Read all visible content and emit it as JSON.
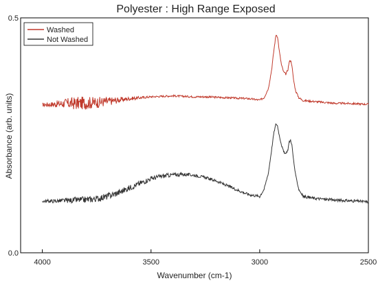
{
  "chart_data": {
    "type": "line",
    "title": "Polyester : High Range Exposed",
    "xlabel": "Wavenumber (cm-1)",
    "ylabel": "Absorbance (arb. units)",
    "xlim": [
      4100,
      2500
    ],
    "ylim": [
      0.0,
      0.5
    ],
    "x_reversed": true,
    "x_ticks": [
      4000,
      3500,
      3000,
      2500
    ],
    "x_tick_labels": [
      "4000",
      "3500",
      "3000",
      "2500"
    ],
    "y_ticks": [
      0.0,
      0.5
    ],
    "y_tick_labels": [
      "0.0",
      "0.5"
    ],
    "grid": false,
    "legend": {
      "position": "top-left",
      "boxed": true
    },
    "series": [
      {
        "name": "Washed",
        "color": "#c0392b",
        "x": [
          4000,
          3950,
          3900,
          3850,
          3800,
          3750,
          3700,
          3650,
          3600,
          3550,
          3500,
          3450,
          3400,
          3350,
          3300,
          3250,
          3200,
          3150,
          3100,
          3050,
          3000,
          2980,
          2960,
          2945,
          2935,
          2925,
          2918,
          2910,
          2900,
          2890,
          2880,
          2870,
          2865,
          2858,
          2852,
          2845,
          2835,
          2820,
          2800,
          2750,
          2700,
          2650,
          2600,
          2550,
          2500
        ],
        "y": [
          0.315,
          0.316,
          0.318,
          0.318,
          0.319,
          0.32,
          0.322,
          0.325,
          0.328,
          0.33,
          0.332,
          0.333,
          0.334,
          0.333,
          0.332,
          0.332,
          0.331,
          0.33,
          0.329,
          0.328,
          0.325,
          0.33,
          0.35,
          0.39,
          0.43,
          0.465,
          0.46,
          0.43,
          0.4,
          0.385,
          0.38,
          0.39,
          0.405,
          0.41,
          0.4,
          0.37,
          0.345,
          0.33,
          0.324,
          0.322,
          0.32,
          0.318,
          0.318,
          0.317,
          0.316
        ],
        "noise_amplitude": [
          0.004,
          0.006,
          0.01,
          0.014,
          0.014,
          0.012,
          0.01,
          0.006,
          0.004,
          0.003,
          0.002,
          0.002,
          0.002,
          0.002,
          0.002,
          0.002,
          0.002,
          0.002,
          0.002,
          0.002,
          0.002,
          0.002,
          0.002,
          0.002,
          0.002,
          0.002,
          0.002,
          0.002,
          0.002,
          0.002,
          0.002,
          0.002,
          0.002,
          0.002,
          0.002,
          0.002,
          0.002,
          0.002,
          0.002,
          0.002,
          0.002,
          0.002,
          0.002,
          0.002,
          0.002
        ]
      },
      {
        "name": "Not Washed",
        "color": "#333333",
        "x": [
          4000,
          3950,
          3900,
          3850,
          3800,
          3750,
          3700,
          3650,
          3600,
          3550,
          3500,
          3450,
          3400,
          3350,
          3300,
          3250,
          3200,
          3150,
          3100,
          3050,
          3000,
          2980,
          2960,
          2945,
          2935,
          2925,
          2918,
          2910,
          2900,
          2890,
          2880,
          2870,
          2865,
          2858,
          2852,
          2845,
          2835,
          2820,
          2800,
          2750,
          2700,
          2650,
          2600,
          2550,
          2500
        ],
        "y": [
          0.11,
          0.11,
          0.111,
          0.112,
          0.113,
          0.115,
          0.12,
          0.128,
          0.138,
          0.148,
          0.158,
          0.163,
          0.166,
          0.167,
          0.165,
          0.16,
          0.153,
          0.143,
          0.133,
          0.124,
          0.12,
          0.135,
          0.17,
          0.22,
          0.255,
          0.275,
          0.27,
          0.25,
          0.23,
          0.215,
          0.21,
          0.22,
          0.235,
          0.24,
          0.23,
          0.2,
          0.165,
          0.135,
          0.12,
          0.116,
          0.114,
          0.112,
          0.111,
          0.11,
          0.108
        ],
        "noise_amplitude": [
          0.003,
          0.004,
          0.005,
          0.006,
          0.007,
          0.007,
          0.007,
          0.007,
          0.006,
          0.006,
          0.005,
          0.005,
          0.004,
          0.004,
          0.003,
          0.003,
          0.003,
          0.003,
          0.003,
          0.003,
          0.003,
          0.002,
          0.002,
          0.002,
          0.002,
          0.002,
          0.002,
          0.002,
          0.002,
          0.002,
          0.002,
          0.002,
          0.002,
          0.002,
          0.002,
          0.002,
          0.002,
          0.002,
          0.003,
          0.003,
          0.003,
          0.003,
          0.003,
          0.003,
          0.003
        ]
      }
    ]
  }
}
